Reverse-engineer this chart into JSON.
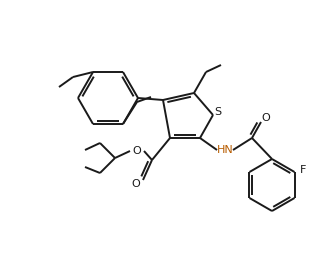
{
  "bg_color": "#ffffff",
  "line_color": "#1a1a1a",
  "bond_width": 1.4,
  "text_color_hn": "#b85c00",
  "text_color_black": "#1a1a1a",
  "figsize": [
    3.32,
    2.69
  ],
  "dpi": 100,
  "S_label": "S",
  "O_label": "O",
  "HN_label": "HN",
  "F_label": "F"
}
